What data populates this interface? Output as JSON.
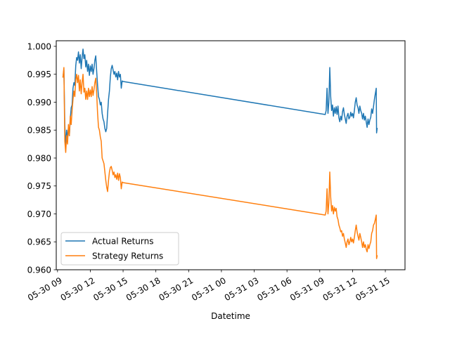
{
  "chart_data": {
    "type": "line",
    "xlabel": "Datetime",
    "ylabel": "",
    "grid": false,
    "legend_position": "lower-left",
    "ylim": [
      0.96,
      1.001
    ],
    "yticks": [
      "0.960",
      "0.965",
      "0.970",
      "0.975",
      "0.980",
      "0.985",
      "0.990",
      "0.995",
      "1.000"
    ],
    "xlim": [
      "05-30 08:53",
      "05-31 16:48"
    ],
    "xticks": [
      {
        "t": "05-30 09:00",
        "label": "05-30 09"
      },
      {
        "t": "05-30 12:00",
        "label": "05-30 12"
      },
      {
        "t": "05-30 15:00",
        "label": "05-30 15"
      },
      {
        "t": "05-30 18:00",
        "label": "05-30 18"
      },
      {
        "t": "05-30 21:00",
        "label": "05-30 21"
      },
      {
        "t": "05-31 00:00",
        "label": "05-31 00"
      },
      {
        "t": "05-31 03:00",
        "label": "05-31 03"
      },
      {
        "t": "05-31 06:00",
        "label": "05-31 06"
      },
      {
        "t": "05-31 09:00",
        "label": "05-31 09"
      },
      {
        "t": "05-31 12:00",
        "label": "05-31 12"
      },
      {
        "t": "05-31 15:00",
        "label": "05-31 15"
      }
    ],
    "series": [
      {
        "name": "Actual Returns",
        "color": "#1f77b4",
        "points": [
          [
            "05-30 09:30",
            0.9945
          ],
          [
            "05-30 09:35",
            0.9958
          ],
          [
            "05-30 09:40",
            0.986
          ],
          [
            "05-30 09:45",
            0.982
          ],
          [
            "05-30 09:50",
            0.985
          ],
          [
            "05-30 09:55",
            0.9835
          ],
          [
            "05-30 10:00",
            0.9855
          ],
          [
            "05-30 10:05",
            0.984
          ],
          [
            "05-30 10:10",
            0.987
          ],
          [
            "05-30 10:15",
            0.989
          ],
          [
            "05-30 10:20",
            0.9895
          ],
          [
            "05-30 10:25",
            0.9925
          ],
          [
            "05-30 10:30",
            0.9935
          ],
          [
            "05-30 10:35",
            0.993
          ],
          [
            "05-30 10:40",
            0.9965
          ],
          [
            "05-30 10:45",
            0.998
          ],
          [
            "05-30 10:50",
            0.9975
          ],
          [
            "05-30 10:55",
            0.999
          ],
          [
            "05-30 11:00",
            0.997
          ],
          [
            "05-30 11:05",
            0.9985
          ],
          [
            "05-30 11:10",
            0.996
          ],
          [
            "05-30 11:15",
            0.998
          ],
          [
            "05-30 11:20",
            0.9995
          ],
          [
            "05-30 11:25",
            0.9978
          ],
          [
            "05-30 11:30",
            0.9985
          ],
          [
            "05-30 11:35",
            0.9963
          ],
          [
            "05-30 11:40",
            0.9975
          ],
          [
            "05-30 11:45",
            0.9955
          ],
          [
            "05-30 11:50",
            0.9968
          ],
          [
            "05-30 11:55",
            0.9948
          ],
          [
            "05-30 12:00",
            0.9965
          ],
          [
            "05-30 12:05",
            0.9955
          ],
          [
            "05-30 12:10",
            0.9968
          ],
          [
            "05-30 12:15",
            0.995
          ],
          [
            "05-30 12:20",
            0.996
          ],
          [
            "05-30 12:25",
            0.9975
          ],
          [
            "05-30 12:30",
            0.9983
          ],
          [
            "05-30 12:35",
            0.9955
          ],
          [
            "05-30 12:40",
            0.993
          ],
          [
            "05-30 12:45",
            0.991
          ],
          [
            "05-30 12:50",
            0.9905
          ],
          [
            "05-30 12:55",
            0.9895
          ],
          [
            "05-30 13:00",
            0.99
          ],
          [
            "05-30 13:05",
            0.988
          ],
          [
            "05-30 13:10",
            0.987
          ],
          [
            "05-30 13:15",
            0.9865
          ],
          [
            "05-30 13:20",
            0.9853
          ],
          [
            "05-30 13:25",
            0.9847
          ],
          [
            "05-30 13:30",
            0.9853
          ],
          [
            "05-30 13:35",
            0.988
          ],
          [
            "05-30 13:40",
            0.9905
          ],
          [
            "05-30 13:45",
            0.992
          ],
          [
            "05-30 13:50",
            0.9945
          ],
          [
            "05-30 13:55",
            0.996
          ],
          [
            "05-30 14:00",
            0.9966
          ],
          [
            "05-30 14:05",
            0.9958
          ],
          [
            "05-30 14:10",
            0.995
          ],
          [
            "05-30 14:15",
            0.9955
          ],
          [
            "05-30 14:20",
            0.9945
          ],
          [
            "05-30 14:25",
            0.9952
          ],
          [
            "05-30 14:30",
            0.994
          ],
          [
            "05-30 14:35",
            0.9955
          ],
          [
            "05-30 14:40",
            0.9945
          ],
          [
            "05-30 14:45",
            0.995
          ],
          [
            "05-30 14:50",
            0.9925
          ],
          [
            "05-30 14:55",
            0.9938
          ],
          [
            "05-30 15:00",
            0.9937
          ],
          [
            "05-31 09:30",
            0.9878
          ],
          [
            "05-31 09:35",
            0.9885
          ],
          [
            "05-31 09:40",
            0.9925
          ],
          [
            "05-31 09:45",
            0.988
          ],
          [
            "05-31 09:50",
            0.99
          ],
          [
            "05-31 09:55",
            0.9962
          ],
          [
            "05-31 10:00",
            0.991
          ],
          [
            "05-31 10:05",
            0.9885
          ],
          [
            "05-31 10:10",
            0.9895
          ],
          [
            "05-31 10:15",
            0.9875
          ],
          [
            "05-31 10:20",
            0.989
          ],
          [
            "05-31 10:25",
            0.988
          ],
          [
            "05-31 10:30",
            0.9892
          ],
          [
            "05-31 10:35",
            0.9878
          ],
          [
            "05-31 10:40",
            0.9893
          ],
          [
            "05-31 10:45",
            0.9872
          ],
          [
            "05-31 10:50",
            0.9865
          ],
          [
            "05-31 10:55",
            0.9875
          ],
          [
            "05-31 11:00",
            0.9868
          ],
          [
            "05-31 11:05",
            0.9883
          ],
          [
            "05-31 11:10",
            0.989
          ],
          [
            "05-31 11:15",
            0.9878
          ],
          [
            "05-31 11:20",
            0.987
          ],
          [
            "05-31 11:25",
            0.9862
          ],
          [
            "05-31 11:30",
            0.9875
          ],
          [
            "05-31 11:35",
            0.988
          ],
          [
            "05-31 11:40",
            0.987
          ],
          [
            "05-31 11:45",
            0.9873
          ],
          [
            "05-31 11:50",
            0.9882
          ],
          [
            "05-31 11:55",
            0.9875
          ],
          [
            "05-31 12:00",
            0.988
          ],
          [
            "05-31 12:05",
            0.9872
          ],
          [
            "05-31 12:10",
            0.9885
          ],
          [
            "05-31 12:15",
            0.99
          ],
          [
            "05-31 12:20",
            0.9908
          ],
          [
            "05-31 12:25",
            0.9895
          ],
          [
            "05-31 12:30",
            0.989
          ],
          [
            "05-31 12:35",
            0.988
          ],
          [
            "05-31 12:40",
            0.9893
          ],
          [
            "05-31 12:45",
            0.9885
          ],
          [
            "05-31 12:50",
            0.988
          ],
          [
            "05-31 12:55",
            0.987
          ],
          [
            "05-31 13:00",
            0.988
          ],
          [
            "05-31 13:05",
            0.9868
          ],
          [
            "05-31 13:10",
            0.9875
          ],
          [
            "05-31 13:15",
            0.9865
          ],
          [
            "05-31 13:20",
            0.9855
          ],
          [
            "05-31 13:25",
            0.987
          ],
          [
            "05-31 13:30",
            0.986
          ],
          [
            "05-31 13:35",
            0.9868
          ],
          [
            "05-31 13:40",
            0.9873
          ],
          [
            "05-31 13:45",
            0.9888
          ],
          [
            "05-31 13:50",
            0.988
          ],
          [
            "05-31 13:55",
            0.9892
          ],
          [
            "05-31 14:00",
            0.9905
          ],
          [
            "05-31 14:05",
            0.9915
          ],
          [
            "05-31 14:10",
            0.9925
          ],
          [
            "05-31 14:12",
            0.9845
          ],
          [
            "05-31 14:15",
            0.9853
          ]
        ]
      },
      {
        "name": "Strategy Returns",
        "color": "#ff7f0e",
        "points": [
          [
            "05-30 09:30",
            0.9945
          ],
          [
            "05-30 09:35",
            0.9962
          ],
          [
            "05-30 09:40",
            0.983
          ],
          [
            "05-30 09:45",
            0.981
          ],
          [
            "05-30 09:50",
            0.984
          ],
          [
            "05-30 09:55",
            0.9825
          ],
          [
            "05-30 10:00",
            0.986
          ],
          [
            "05-30 10:05",
            0.984
          ],
          [
            "05-30 10:10",
            0.9875
          ],
          [
            "05-30 10:15",
            0.986
          ],
          [
            "05-30 10:20",
            0.9885
          ],
          [
            "05-30 10:25",
            0.9905
          ],
          [
            "05-30 10:30",
            0.992
          ],
          [
            "05-30 10:35",
            0.991
          ],
          [
            "05-30 10:40",
            0.994
          ],
          [
            "05-30 10:45",
            0.995
          ],
          [
            "05-30 10:50",
            0.9935
          ],
          [
            "05-30 10:55",
            0.9948
          ],
          [
            "05-30 11:00",
            0.992
          ],
          [
            "05-30 11:05",
            0.994
          ],
          [
            "05-30 11:10",
            0.9915
          ],
          [
            "05-30 11:15",
            0.9935
          ],
          [
            "05-30 11:20",
            0.995
          ],
          [
            "05-30 11:25",
            0.9918
          ],
          [
            "05-30 11:30",
            0.9925
          ],
          [
            "05-30 11:35",
            0.9905
          ],
          [
            "05-30 11:40",
            0.992
          ],
          [
            "05-30 11:45",
            0.9905
          ],
          [
            "05-30 11:50",
            0.9925
          ],
          [
            "05-30 11:55",
            0.991
          ],
          [
            "05-30 12:00",
            0.9922
          ],
          [
            "05-30 12:05",
            0.991
          ],
          [
            "05-30 12:10",
            0.9928
          ],
          [
            "05-30 12:15",
            0.9912
          ],
          [
            "05-30 12:20",
            0.9922
          ],
          [
            "05-30 12:25",
            0.9935
          ],
          [
            "05-30 12:30",
            0.9943
          ],
          [
            "05-30 12:35",
            0.9915
          ],
          [
            "05-30 12:40",
            0.988
          ],
          [
            "05-30 12:45",
            0.9855
          ],
          [
            "05-30 12:50",
            0.985
          ],
          [
            "05-30 12:55",
            0.9838
          ],
          [
            "05-30 13:00",
            0.983
          ],
          [
            "05-30 13:05",
            0.98
          ],
          [
            "05-30 13:10",
            0.9795
          ],
          [
            "05-30 13:15",
            0.979
          ],
          [
            "05-30 13:20",
            0.9775
          ],
          [
            "05-30 13:25",
            0.976
          ],
          [
            "05-30 13:30",
            0.9748
          ],
          [
            "05-30 13:35",
            0.974
          ],
          [
            "05-30 13:40",
            0.976
          ],
          [
            "05-30 13:45",
            0.9775
          ],
          [
            "05-30 13:50",
            0.9783
          ],
          [
            "05-30 13:55",
            0.9785
          ],
          [
            "05-30 14:00",
            0.9778
          ],
          [
            "05-30 14:05",
            0.977
          ],
          [
            "05-30 14:10",
            0.9775
          ],
          [
            "05-30 14:15",
            0.9765
          ],
          [
            "05-30 14:20",
            0.977
          ],
          [
            "05-30 14:25",
            0.9762
          ],
          [
            "05-30 14:30",
            0.9773
          ],
          [
            "05-30 14:35",
            0.976
          ],
          [
            "05-30 14:40",
            0.9772
          ],
          [
            "05-30 14:45",
            0.9765
          ],
          [
            "05-30 14:50",
            0.9745
          ],
          [
            "05-30 14:55",
            0.9757
          ],
          [
            "05-30 15:00",
            0.9756
          ],
          [
            "05-31 09:30",
            0.9698
          ],
          [
            "05-31 09:35",
            0.9705
          ],
          [
            "05-31 09:40",
            0.9745
          ],
          [
            "05-31 09:45",
            0.97
          ],
          [
            "05-31 09:50",
            0.972
          ],
          [
            "05-31 09:55",
            0.9775
          ],
          [
            "05-31 10:00",
            0.973
          ],
          [
            "05-31 10:05",
            0.9705
          ],
          [
            "05-31 10:10",
            0.9715
          ],
          [
            "05-31 10:15",
            0.97
          ],
          [
            "05-31 10:20",
            0.9712
          ],
          [
            "05-31 10:25",
            0.9705
          ],
          [
            "05-31 10:30",
            0.971
          ],
          [
            "05-31 10:35",
            0.9695
          ],
          [
            "05-31 10:40",
            0.969
          ],
          [
            "05-31 10:45",
            0.968
          ],
          [
            "05-31 10:50",
            0.9675
          ],
          [
            "05-31 10:55",
            0.9668
          ],
          [
            "05-31 11:00",
            0.967
          ],
          [
            "05-31 11:05",
            0.966
          ],
          [
            "05-31 11:10",
            0.9665
          ],
          [
            "05-31 11:15",
            0.9655
          ],
          [
            "05-31 11:20",
            0.9648
          ],
          [
            "05-31 11:25",
            0.964
          ],
          [
            "05-31 11:30",
            0.965
          ],
          [
            "05-31 11:35",
            0.9655
          ],
          [
            "05-31 11:40",
            0.9645
          ],
          [
            "05-31 11:45",
            0.965
          ],
          [
            "05-31 11:50",
            0.9658
          ],
          [
            "05-31 11:55",
            0.965
          ],
          [
            "05-31 12:00",
            0.9655
          ],
          [
            "05-31 12:05",
            0.9648
          ],
          [
            "05-31 12:10",
            0.9658
          ],
          [
            "05-31 12:15",
            0.967
          ],
          [
            "05-31 12:20",
            0.968
          ],
          [
            "05-31 12:25",
            0.9668
          ],
          [
            "05-31 12:30",
            0.966
          ],
          [
            "05-31 12:35",
            0.9653
          ],
          [
            "05-31 12:40",
            0.9665
          ],
          [
            "05-31 12:45",
            0.9658
          ],
          [
            "05-31 12:50",
            0.965
          ],
          [
            "05-31 12:55",
            0.964
          ],
          [
            "05-31 13:00",
            0.965
          ],
          [
            "05-31 13:05",
            0.964
          ],
          [
            "05-31 13:10",
            0.9645
          ],
          [
            "05-31 13:15",
            0.9637
          ],
          [
            "05-31 13:20",
            0.9632
          ],
          [
            "05-31 13:25",
            0.9645
          ],
          [
            "05-31 13:30",
            0.9638
          ],
          [
            "05-31 13:35",
            0.9645
          ],
          [
            "05-31 13:40",
            0.965
          ],
          [
            "05-31 13:45",
            0.9665
          ],
          [
            "05-31 13:50",
            0.967
          ],
          [
            "05-31 13:55",
            0.968
          ],
          [
            "05-31 14:00",
            0.9683
          ],
          [
            "05-31 14:05",
            0.969
          ],
          [
            "05-31 14:10",
            0.9698
          ],
          [
            "05-31 14:12",
            0.962
          ],
          [
            "05-31 14:15",
            0.9625
          ]
        ]
      }
    ]
  }
}
